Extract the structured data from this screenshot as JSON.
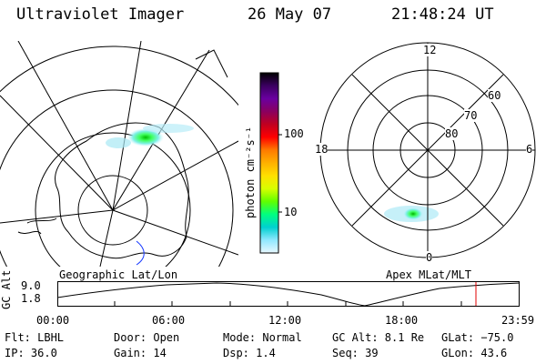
{
  "header": {
    "instrument": "Ultraviolet Imager",
    "date": "26 May 07",
    "time": "21:48:24 UT"
  },
  "colorbar": {
    "unit_label": "photon cm⁻²s⁻¹",
    "ticks": [
      "100",
      "10"
    ],
    "stops": [
      "#000000",
      "#3b0060",
      "#6a00a0",
      "#8a0060",
      "#c00020",
      "#ff0000",
      "#ff7a00",
      "#ffb000",
      "#ffe000",
      "#d8ff00",
      "#60ff00",
      "#00ff80",
      "#00d0d0",
      "#90e8ff",
      "#e8f8ff"
    ]
  },
  "left_panel": {
    "caption": "Geographic Lat/Lon"
  },
  "right_panel": {
    "caption": "Apex MLat/MLT",
    "mlt_labels": {
      "top": "12",
      "left": "18",
      "right": "6",
      "bottom": "0"
    },
    "lat_labels": [
      "60",
      "70",
      "80"
    ]
  },
  "altitude_plot": {
    "ylabel": "GC Alt",
    "yticks": [
      "9.0",
      "1.8"
    ],
    "xticks": [
      "00:00",
      "06:00",
      "12:00",
      "18:00",
      "23:59"
    ],
    "marker_color": "#e00000"
  },
  "status": {
    "flt": "Flt: LBHL",
    "ip": "IP: 36.0",
    "door": "Door: Open",
    "gain": "Gain: 14",
    "mode": "Mode: Normal",
    "dsp": "Dsp:    1.4",
    "gc_alt": "GC Alt: 8.1 Re",
    "seq": "Seq: 39",
    "glat": "GLat: −75.0",
    "glon": "GLon:  43.6"
  }
}
